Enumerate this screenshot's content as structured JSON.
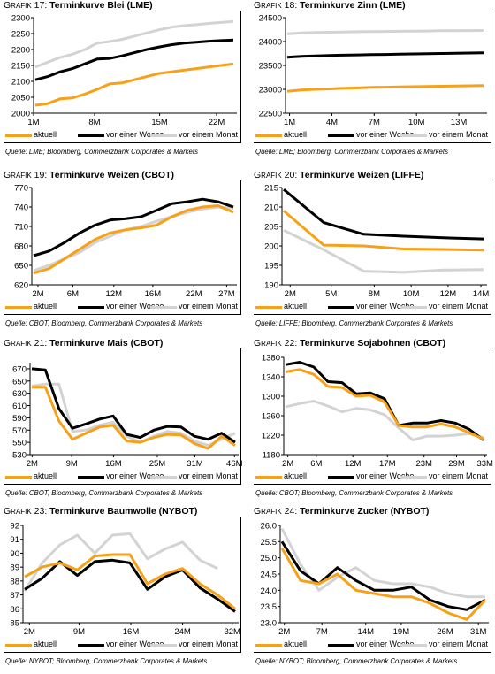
{
  "legend_labels": [
    "aktuell",
    "vor einer Woche",
    "vor einem Monat"
  ],
  "colors": {
    "aktuell": "#f7a11a",
    "woche": "#000000",
    "monat": "#d3d3d3"
  },
  "charts": [
    {
      "id": "c17",
      "title_prefix": "Grafik",
      "number": "17",
      "title": "Terminkurve Blei (LME)",
      "source": "Quelle: LME; Bloomberg, Commerzbank Corporates & Markets",
      "chart_data": {
        "type": "line",
        "xtick_labels": [
          "1M",
          "8M",
          "15M",
          "22M"
        ],
        "ytick_labels": [
          "2000",
          "2050",
          "2100",
          "2150",
          "2200",
          "2250",
          "2300"
        ],
        "ylim": [
          2000,
          2300
        ],
        "series": [
          {
            "name": "aktuell",
            "values": [
              2025,
              2030,
              2045,
              2048,
              2060,
              2075,
              2092,
              2095,
              2105,
              2115,
              2125,
              2130,
              2135,
              2140,
              2145,
              2150,
              2155
            ]
          },
          {
            "name": "vor einer Woche",
            "values": [
              2105,
              2115,
              2130,
              2140,
              2155,
              2170,
              2172,
              2180,
              2190,
              2200,
              2208,
              2215,
              2220,
              2223,
              2226,
              2228,
              2230
            ]
          },
          {
            "name": "vor einem Monat",
            "values": [
              2145,
              2160,
              2175,
              2185,
              2200,
              2220,
              2225,
              2232,
              2242,
              2252,
              2262,
              2270,
              2275,
              2278,
              2282,
              2285,
              2288
            ]
          }
        ]
      }
    },
    {
      "id": "c18",
      "title_prefix": "Grafik",
      "number": "18",
      "title": "Terminkurve Zinn (LME)",
      "source": "Quelle: LME; Bloomberg, Commerzbank Corporates & Markets",
      "chart_data": {
        "type": "line",
        "xtick_labels": [
          "1M",
          "4M",
          "7M",
          "10M",
          "13M"
        ],
        "ytick_labels": [
          "22500",
          "23000",
          "23500",
          "24000",
          "24500"
        ],
        "ylim": [
          22500,
          24500
        ],
        "series": [
          {
            "name": "aktuell",
            "values": [
              22960,
              22985,
              23000,
              23010,
              23020,
              23030,
              23040,
              23045,
              23050,
              23055,
              23060,
              23065,
              23070,
              23075,
              23080
            ]
          },
          {
            "name": "vor einer Woche",
            "values": [
              23670,
              23690,
              23700,
              23710,
              23715,
              23720,
              23725,
              23730,
              23735,
              23740,
              23745,
              23750,
              23755,
              23760,
              23765
            ]
          },
          {
            "name": "vor einem Monat",
            "values": [
              24160,
              24180,
              24190,
              24195,
              24200,
              24205,
              24210,
              24212,
              24215,
              24218,
              24220,
              24225,
              24228,
              24230,
              24232
            ]
          }
        ]
      }
    },
    {
      "id": "c19",
      "title_prefix": "Grafik",
      "number": "19",
      "title": "Terminkurve Weizen (CBOT)",
      "source": "Quelle: CBOT; Bloomberg, Commerzbank Corporates & Markets",
      "chart_data": {
        "type": "line",
        "xtick_labels": [
          "2M",
          "6M",
          "12M",
          "16M",
          "22M",
          "27M"
        ],
        "ytick_labels": [
          "620",
          "650",
          "680",
          "710",
          "740",
          "770"
        ],
        "ylim": [
          620,
          770
        ],
        "series": [
          {
            "name": "aktuell",
            "values": [
              638,
              645,
              660,
              675,
              690,
              700,
              705,
              708,
              712,
              725,
              735,
              740,
              742,
              732
            ]
          },
          {
            "name": "vor einer Woche",
            "values": [
              665,
              672,
              685,
              700,
              712,
              720,
              722,
              725,
              735,
              745,
              748,
              752,
              748,
              740
            ]
          },
          {
            "name": "vor einem Monat",
            "values": [
              642,
              650,
              660,
              670,
              685,
              695,
              705,
              710,
              718,
              725,
              732,
              737,
              740,
              738
            ]
          }
        ]
      }
    },
    {
      "id": "c20",
      "title_prefix": "Grafik",
      "number": "20",
      "title": "Terminkurve Weizen (LIFFE)",
      "source": "Quelle: LIFFE; Bloomberg, Commerzbank Corporates & Markets",
      "chart_data": {
        "type": "line",
        "xtick_labels": [
          "2M",
          "5M",
          "8M",
          "10M",
          "12M",
          "14M"
        ],
        "ytick_labels": [
          "190",
          "195",
          "200",
          "205",
          "210",
          "215"
        ],
        "ylim": [
          190,
          215
        ],
        "series": [
          {
            "name": "aktuell",
            "values": [
              209,
              200.2,
              200,
              199.2,
              199.1,
              198.9
            ]
          },
          {
            "name": "vor einer Woche",
            "values": [
              214.5,
              206,
              203,
              202.5,
              202.1,
              201.8
            ]
          },
          {
            "name": "vor einem Monat",
            "values": [
              204,
              199,
              193.5,
              193.2,
              193.8,
              193.9
            ]
          }
        ]
      }
    },
    {
      "id": "c21",
      "title_prefix": "Grafik",
      "number": "21",
      "title": "Terminkurve Mais (CBOT)",
      "source": "Quelle: CBOT; Bloomberg, Commerzbank Corporates & Markets",
      "chart_data": {
        "type": "line",
        "xtick_labels": [
          "2M",
          "9M",
          "16M",
          "25M",
          "31M",
          "46M"
        ],
        "ytick_labels": [
          "530",
          "550",
          "570",
          "590",
          "610",
          "630",
          "650",
          "670"
        ],
        "ylim": [
          530,
          680
        ],
        "series": [
          {
            "name": "aktuell",
            "values": [
              640,
              640,
              585,
              555,
              565,
              575,
              578,
              552,
              550,
              558,
              563,
              562,
              548,
              540,
              560,
              545
            ]
          },
          {
            "name": "vor einer Woche",
            "values": [
              670,
              668,
              605,
              573,
              580,
              588,
              593,
              563,
              558,
              570,
              576,
              575,
              560,
              555,
              565,
              550
            ]
          },
          {
            "name": "vor einem Monat",
            "values": [
              642,
              645,
              645,
              568,
              570,
              578,
              583,
              560,
              550,
              560,
              568,
              565,
              552,
              545,
              555,
              565
            ]
          }
        ]
      }
    },
    {
      "id": "c22",
      "title_prefix": "Grafik",
      "number": "22",
      "title": "Terminkurve Sojabohnen (CBOT)",
      "source": "Quelle: CBOT; Bloomberg, Commerzbank Corporates & Markets",
      "chart_data": {
        "type": "line",
        "xtick_labels": [
          "2M",
          "6M",
          "12M",
          "17M",
          "23M",
          "29M",
          "33M"
        ],
        "ytick_labels": [
          "1180",
          "1220",
          "1260",
          "1300",
          "1340",
          "1380"
        ],
        "ylim": [
          1180,
          1380
        ],
        "series": [
          {
            "name": "aktuell",
            "values": [
              1350,
              1355,
              1345,
              1320,
              1318,
              1300,
              1302,
              1288,
              1240,
              1237,
              1237,
              1243,
              1237,
              1225,
              1212
            ]
          },
          {
            "name": "vor einer Woche",
            "values": [
              1365,
              1370,
              1360,
              1330,
              1328,
              1305,
              1307,
              1295,
              1240,
              1245,
              1245,
              1250,
              1245,
              1232,
              1210
            ]
          },
          {
            "name": "vor einem Monat",
            "values": [
              1278,
              1285,
              1290,
              1280,
              1268,
              1275,
              1272,
              1262,
              1235,
              1210,
              1218,
              1218,
              1220,
              1223,
              1215
            ]
          }
        ]
      }
    },
    {
      "id": "c23",
      "title_prefix": "Grafik",
      "number": "23",
      "title": "Terminkurve Baumwolle (NYBOT)",
      "source": "Quelle: NYBOT; Bloomberg, Commerzbank Corporates & Markets",
      "chart_data": {
        "type": "line",
        "xtick_labels": [
          "2M",
          "9M",
          "16M",
          "24M",
          "32M"
        ],
        "ytick_labels": [
          "85",
          "86",
          "87",
          "88",
          "89",
          "90",
          "91",
          "92"
        ],
        "ylim": [
          85,
          92
        ],
        "series": [
          {
            "name": "aktuell",
            "values": [
              88.3,
              89.0,
              89.3,
              88.8,
              89.8,
              89.9,
              89.9,
              87.8,
              88.5,
              88.9,
              87.8,
              87.0,
              86.0
            ]
          },
          {
            "name": "vor einer Woche",
            "values": [
              87.4,
              88.2,
              89.4,
              88.4,
              89.4,
              89.5,
              89.3,
              87.4,
              88.3,
              88.8,
              87.5,
              86.7,
              85.8
            ]
          },
          {
            "name": "vor einem Monat",
            "values": [
              87.3,
              89.3,
              90.6,
              91.3,
              90.0,
              91.3,
              91.4,
              89.6,
              90.3,
              90.8,
              89.5,
              88.9,
              null
            ]
          }
        ]
      }
    },
    {
      "id": "c24",
      "title_prefix": "Grafik",
      "number": "24",
      "title": "Terminkurve Zucker (NYBOT)",
      "source": "Quelle: NYBOT; Bloomberg, Commerzbank Corporates & Markets",
      "chart_data": {
        "type": "line",
        "xtick_labels": [
          "2M",
          "7M",
          "14M",
          "19M",
          "26M",
          "31M"
        ],
        "ytick_labels": [
          "23.0",
          "23.5",
          "24.0",
          "24.5",
          "25.0",
          "25.5",
          "26.0"
        ],
        "ylim": [
          23.0,
          26.0
        ],
        "series": [
          {
            "name": "aktuell",
            "values": [
              25.3,
              24.3,
              24.2,
              24.5,
              24.0,
              23.9,
              23.8,
              23.8,
              23.6,
              23.3,
              23.1,
              23.7
            ]
          },
          {
            "name": "vor einer Woche",
            "values": [
              25.5,
              24.6,
              24.2,
              24.7,
              24.3,
              24.0,
              24.0,
              24.1,
              23.7,
              23.5,
              23.4,
              23.7
            ]
          },
          {
            "name": "vor einem Monat",
            "values": [
              25.9,
              24.8,
              24.0,
              24.4,
              24.7,
              24.3,
              24.2,
              24.2,
              24.1,
              23.9,
              23.8,
              23.8
            ]
          }
        ]
      }
    }
  ]
}
